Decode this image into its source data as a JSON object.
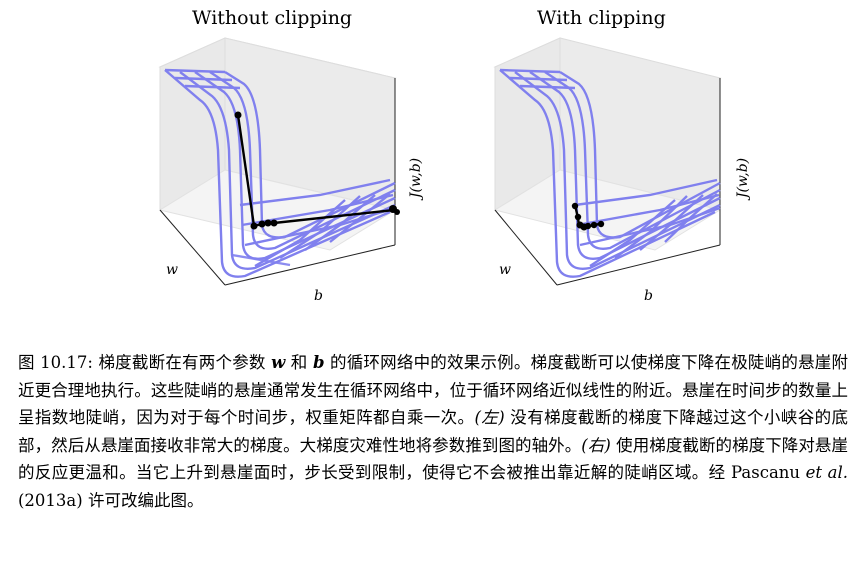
{
  "panels": {
    "left": {
      "title": "Without clipping",
      "zlabel": "J(w,b)",
      "xlabel": "w",
      "ylabel": "b"
    },
    "right": {
      "title": "With clipping",
      "zlabel": "J(w,b)",
      "xlabel": "w",
      "ylabel": "b"
    }
  },
  "caption": {
    "figure_number": "图 10.17:",
    "text1": "梯度截断在有两个参数",
    "w": "w",
    "and": "和",
    "b": "b",
    "text2": "的循环网络中的效果示例。梯度截断可以使梯度下降在极陡峭的悬崖附近更合理地执行。这些陡峭的悬崖通常发生在循环网络中，位于循环网络近似线性的附近。悬崖在时间步的数量上呈指数地陡峭，因为对于每个时间步，权重矩阵都自乘一次。",
    "left_tag": "(左)",
    "text3": "没有梯度截断的梯度下降越过这个小峡谷的底部，然后从悬崖面接收非常大的梯度。大梯度灾难性地将参数推到图的轴外。",
    "right_tag": "(右)",
    "text4": "使用梯度截断的梯度下降对悬崖的反应更温和。当它上升到悬崖面时，步长受到限制，使得它不会被推出靠近解的陡峭区域。经 Pascanu",
    "etal": "et al.",
    "text5": "(2013a) 许可改编此图。"
  },
  "colors": {
    "surface": "#8080ee",
    "axes": "#222222",
    "path": "#000000"
  }
}
